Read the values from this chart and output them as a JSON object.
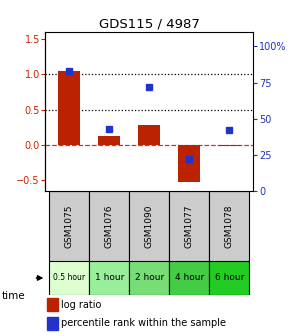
{
  "title": "GDS115 / 4987",
  "samples": [
    "GSM1075",
    "GSM1076",
    "GSM1090",
    "GSM1077",
    "GSM1078"
  ],
  "time_labels": [
    "0.5 hour",
    "1 hour",
    "2 hour",
    "4 hour",
    "6 hour"
  ],
  "time_colors": [
    "#ddffd0",
    "#99ee99",
    "#77dd77",
    "#44cc44",
    "#22cc22"
  ],
  "log_ratio": [
    1.05,
    0.13,
    0.28,
    -0.52,
    -0.02
  ],
  "percentile": [
    83,
    43,
    72,
    22,
    42
  ],
  "bar_color": "#bb2200",
  "dot_color": "#2233cc",
  "ylim_left": [
    -0.65,
    1.6
  ],
  "ylim_right": [
    0,
    110
  ],
  "yticks_left": [
    -0.5,
    0.0,
    0.5,
    1.0,
    1.5
  ],
  "yticks_right": [
    0,
    25,
    50,
    75,
    100
  ],
  "hline_y": [
    0.0,
    0.5,
    1.0
  ],
  "hline_styles": [
    "--",
    ":",
    ":"
  ],
  "hline_colors": [
    "#cc3333",
    "#000000",
    "#000000"
  ],
  "bar_width": 0.55
}
